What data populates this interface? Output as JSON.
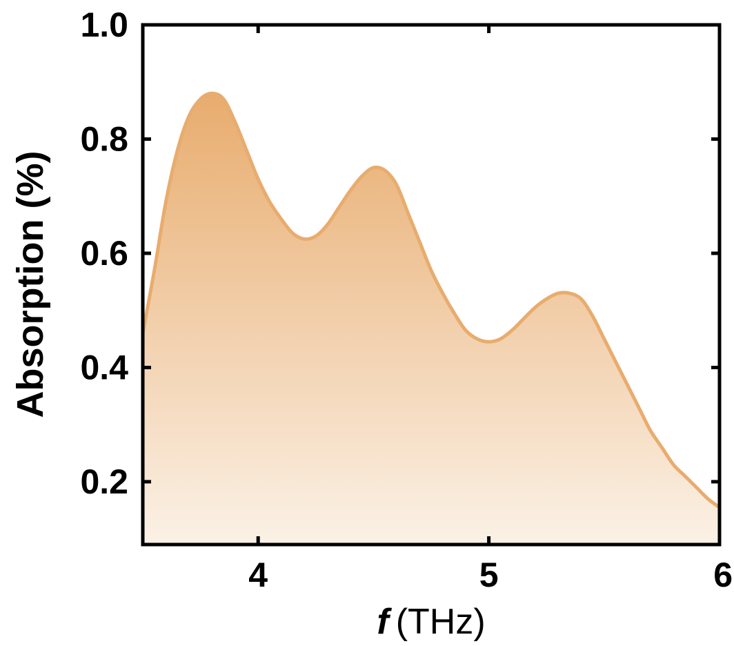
{
  "chart_data": {
    "type": "area",
    "xlabel_italic": "f",
    "xlabel_unit": "(THz)",
    "ylabel": "Absorption (%)",
    "xlim": [
      3.5,
      6.0
    ],
    "ylim": [
      0.09,
      1.0
    ],
    "x_ticks": [
      4,
      5,
      6
    ],
    "x_tick_labels": [
      "4",
      "5",
      "6"
    ],
    "y_ticks": [
      0.2,
      0.4,
      0.6,
      0.8,
      1.0
    ],
    "y_tick_labels": [
      "0.2",
      "0.4",
      "0.6",
      "0.8",
      "1.0"
    ],
    "grid": false,
    "series": [
      {
        "color": "#e8ac6e",
        "x": [
          3.5,
          3.55,
          3.6,
          3.65,
          3.7,
          3.75,
          3.8,
          3.85,
          3.9,
          3.95,
          4.0,
          4.05,
          4.1,
          4.15,
          4.2,
          4.25,
          4.3,
          4.35,
          4.4,
          4.45,
          4.5,
          4.55,
          4.6,
          4.65,
          4.7,
          4.75,
          4.8,
          4.85,
          4.9,
          4.95,
          5.0,
          5.05,
          5.1,
          5.15,
          5.2,
          5.25,
          5.3,
          5.35,
          5.4,
          5.45,
          5.5,
          5.55,
          5.6,
          5.65,
          5.7,
          5.75,
          5.8,
          5.85,
          5.9,
          5.95,
          6.0
        ],
        "y": [
          0.46,
          0.57,
          0.69,
          0.78,
          0.84,
          0.87,
          0.88,
          0.87,
          0.83,
          0.78,
          0.73,
          0.69,
          0.66,
          0.635,
          0.625,
          0.63,
          0.65,
          0.68,
          0.71,
          0.735,
          0.75,
          0.745,
          0.72,
          0.67,
          0.62,
          0.57,
          0.53,
          0.495,
          0.465,
          0.45,
          0.445,
          0.45,
          0.465,
          0.485,
          0.505,
          0.52,
          0.53,
          0.53,
          0.52,
          0.49,
          0.45,
          0.41,
          0.37,
          0.33,
          0.29,
          0.26,
          0.23,
          0.21,
          0.19,
          0.17,
          0.155
        ]
      }
    ]
  }
}
